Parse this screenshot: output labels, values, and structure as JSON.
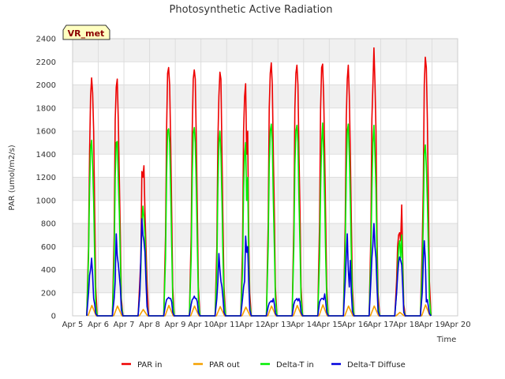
{
  "chart_data": {
    "type": "line",
    "title": "Photosynthetic Active Radiation",
    "xlabel": "Time",
    "ylabel": "PAR (umol/m2/s)",
    "badge": "VR_met",
    "xlim": [
      5,
      20
    ],
    "ylim": [
      0,
      2400
    ],
    "x_ticks": [
      {
        "value": 5,
        "label": "Apr 5"
      },
      {
        "value": 6,
        "label": "Apr 6"
      },
      {
        "value": 7,
        "label": "Apr 7"
      },
      {
        "value": 8,
        "label": "Apr 8"
      },
      {
        "value": 9,
        "label": "Apr 9"
      },
      {
        "value": 10,
        "label": "Apr 10"
      },
      {
        "value": 11,
        "label": "Apr 11"
      },
      {
        "value": 12,
        "label": "Apr 12"
      },
      {
        "value": 13,
        "label": "Apr 13"
      },
      {
        "value": 14,
        "label": "Apr 14"
      },
      {
        "value": 15,
        "label": "Apr 15"
      },
      {
        "value": 16,
        "label": "Apr 16"
      },
      {
        "value": 17,
        "label": "Apr 17"
      },
      {
        "value": 18,
        "label": "Apr 18"
      },
      {
        "value": 19,
        "label": "Apr 19"
      },
      {
        "value": 20,
        "label": "Apr 20"
      }
    ],
    "y_ticks": [
      {
        "value": 0,
        "label": "0"
      },
      {
        "value": 200,
        "label": "200"
      },
      {
        "value": 400,
        "label": "400"
      },
      {
        "value": 600,
        "label": "600"
      },
      {
        "value": 800,
        "label": "800"
      },
      {
        "value": 1000,
        "label": "1000"
      },
      {
        "value": 1200,
        "label": "1200"
      },
      {
        "value": 1400,
        "label": "1400"
      },
      {
        "value": 1600,
        "label": "1600"
      },
      {
        "value": 1800,
        "label": "1800"
      },
      {
        "value": 2000,
        "label": "2000"
      },
      {
        "value": 2200,
        "label": "2200"
      },
      {
        "value": 2400,
        "label": "2400"
      }
    ],
    "grid": true,
    "legend_position": "bottom",
    "series": [
      {
        "name": "PAR in",
        "color": "#ee0000",
        "x": [
          5.55,
          5.62,
          5.66,
          5.7,
          5.74,
          5.78,
          5.82,
          5.86,
          5.9,
          5.96,
          6.55,
          6.62,
          6.66,
          6.7,
          6.74,
          6.78,
          6.82,
          6.86,
          6.9,
          6.96,
          7.55,
          7.62,
          7.66,
          7.7,
          7.74,
          7.78,
          7.82,
          7.86,
          7.9,
          7.96,
          8.55,
          8.62,
          8.66,
          8.7,
          8.74,
          8.78,
          8.82,
          8.86,
          8.9,
          8.96,
          9.55,
          9.62,
          9.66,
          9.7,
          9.74,
          9.78,
          9.82,
          9.86,
          9.9,
          9.96,
          10.55,
          10.62,
          10.66,
          10.7,
          10.74,
          10.78,
          10.82,
          10.86,
          10.9,
          10.96,
          11.55,
          11.62,
          11.66,
          11.7,
          11.74,
          11.78,
          11.82,
          11.86,
          11.9,
          11.96,
          12.55,
          12.62,
          12.66,
          12.7,
          12.74,
          12.78,
          12.82,
          12.86,
          12.9,
          12.96,
          13.55,
          13.62,
          13.66,
          13.7,
          13.74,
          13.78,
          13.82,
          13.86,
          13.9,
          13.96,
          14.55,
          14.62,
          14.66,
          14.7,
          14.74,
          14.78,
          14.82,
          14.86,
          14.9,
          14.96,
          15.55,
          15.62,
          15.66,
          15.7,
          15.74,
          15.78,
          15.82,
          15.86,
          15.9,
          15.96,
          16.55,
          16.62,
          16.66,
          16.7,
          16.74,
          16.78,
          16.82,
          16.86,
          16.9,
          16.96,
          17.55,
          17.62,
          17.66,
          17.7,
          17.74,
          17.78,
          17.82,
          17.86,
          17.9,
          17.96,
          18.55,
          18.62,
          18.66,
          18.7,
          18.74,
          18.78,
          18.82,
          18.86,
          18.9,
          18.96
        ],
        "y": [
          0,
          600,
          1400,
          1900,
          2060,
          1930,
          1600,
          900,
          250,
          0,
          0,
          700,
          1700,
          1980,
          2050,
          1700,
          1200,
          700,
          150,
          0,
          0,
          300,
          500,
          1250,
          1200,
          1300,
          900,
          600,
          300,
          0,
          0,
          700,
          1600,
          2100,
          2150,
          2000,
          1500,
          900,
          250,
          0,
          0,
          700,
          1600,
          2050,
          2130,
          2050,
          1500,
          900,
          250,
          0,
          0,
          600,
          1500,
          1900,
          2110,
          2050,
          1400,
          800,
          250,
          0,
          0,
          600,
          1600,
          1900,
          2010,
          1400,
          1600,
          700,
          200,
          0,
          0,
          800,
          1800,
          2100,
          2190,
          2000,
          1400,
          900,
          250,
          0,
          0,
          800,
          1800,
          2100,
          2170,
          2000,
          1400,
          900,
          250,
          0,
          0,
          800,
          1800,
          2150,
          2180,
          1900,
          1400,
          800,
          250,
          0,
          0,
          800,
          1700,
          2050,
          2170,
          1900,
          1400,
          800,
          250,
          0,
          0,
          700,
          1700,
          2000,
          2320,
          2020,
          1600,
          700,
          200,
          0,
          0,
          300,
          600,
          700,
          720,
          650,
          960,
          500,
          100,
          0,
          0,
          600,
          1100,
          2000,
          2240,
          2150,
          1700,
          1000,
          300,
          0
        ]
      },
      {
        "name": "PAR out",
        "color": "#f5a000",
        "x": [
          5.6,
          5.75,
          5.92,
          6.6,
          6.75,
          6.92,
          7.6,
          7.75,
          7.92,
          8.6,
          8.75,
          8.92,
          9.6,
          9.75,
          9.92,
          10.6,
          10.75,
          10.92,
          11.6,
          11.75,
          11.92,
          12.6,
          12.75,
          12.92,
          13.6,
          13.75,
          13.92,
          14.6,
          14.75,
          14.92,
          15.6,
          15.75,
          15.92,
          16.6,
          16.75,
          16.92,
          17.6,
          17.75,
          17.92,
          18.6,
          18.75,
          18.92
        ],
        "y": [
          0,
          90,
          0,
          0,
          85,
          0,
          0,
          55,
          0,
          0,
          90,
          0,
          0,
          85,
          0,
          0,
          80,
          0,
          0,
          75,
          0,
          0,
          85,
          0,
          0,
          90,
          0,
          0,
          95,
          0,
          0,
          85,
          0,
          0,
          85,
          0,
          0,
          30,
          0,
          0,
          95,
          0
        ]
      },
      {
        "name": "Delta-T in",
        "color": "#00ee00",
        "x": [
          5.55,
          5.62,
          5.66,
          5.7,
          5.74,
          5.78,
          5.82,
          5.86,
          5.9,
          5.96,
          6.55,
          6.62,
          6.66,
          6.7,
          6.74,
          6.78,
          6.82,
          6.86,
          6.9,
          6.96,
          7.55,
          7.62,
          7.66,
          7.7,
          7.74,
          7.78,
          7.82,
          7.86,
          7.9,
          7.96,
          8.55,
          8.62,
          8.66,
          8.7,
          8.74,
          8.78,
          8.82,
          8.86,
          8.9,
          8.96,
          9.55,
          9.62,
          9.66,
          9.7,
          9.74,
          9.78,
          9.82,
          9.86,
          9.9,
          9.96,
          10.55,
          10.62,
          10.66,
          10.7,
          10.74,
          10.78,
          10.82,
          10.86,
          10.9,
          10.96,
          11.55,
          11.62,
          11.66,
          11.7,
          11.74,
          11.78,
          11.82,
          11.86,
          11.9,
          11.96,
          12.55,
          12.62,
          12.66,
          12.7,
          12.74,
          12.78,
          12.82,
          12.86,
          12.9,
          12.96,
          13.55,
          13.62,
          13.66,
          13.7,
          13.74,
          13.78,
          13.82,
          13.86,
          13.9,
          13.96,
          14.55,
          14.62,
          14.66,
          14.7,
          14.74,
          14.78,
          14.82,
          14.86,
          14.9,
          14.96,
          15.55,
          15.62,
          15.66,
          15.7,
          15.74,
          15.78,
          15.82,
          15.86,
          15.9,
          15.96,
          16.55,
          16.62,
          16.66,
          16.7,
          16.74,
          16.78,
          16.82,
          16.86,
          16.9,
          16.96,
          17.55,
          17.62,
          17.66,
          17.7,
          17.74,
          17.78,
          17.82,
          17.86,
          17.9,
          17.96,
          18.55,
          18.62,
          18.66,
          18.7,
          18.74,
          18.78,
          18.82,
          18.86,
          18.9,
          18.96
        ],
        "y": [
          0,
          500,
          1100,
          1450,
          1520,
          1300,
          1000,
          500,
          100,
          0,
          0,
          500,
          1200,
          1500,
          1510,
          1200,
          900,
          500,
          100,
          0,
          0,
          200,
          400,
          800,
          950,
          850,
          700,
          400,
          100,
          0,
          0,
          500,
          1200,
          1600,
          1620,
          1500,
          1100,
          600,
          150,
          0,
          0,
          500,
          1200,
          1580,
          1630,
          1500,
          1100,
          600,
          150,
          0,
          0,
          400,
          1100,
          1500,
          1600,
          1400,
          1000,
          500,
          150,
          0,
          0,
          400,
          1100,
          1400,
          1500,
          1000,
          1200,
          500,
          100,
          0,
          0,
          600,
          1300,
          1600,
          1660,
          1500,
          1000,
          600,
          150,
          0,
          0,
          600,
          1300,
          1600,
          1650,
          1500,
          1000,
          600,
          150,
          0,
          0,
          500,
          1100,
          1500,
          1670,
          1400,
          1000,
          500,
          150,
          0,
          0,
          600,
          1200,
          1600,
          1660,
          1400,
          1000,
          500,
          150,
          0,
          0,
          500,
          1100,
          1500,
          1650,
          1400,
          1100,
          500,
          100,
          0,
          0,
          200,
          400,
          600,
          650,
          500,
          700,
          400,
          50,
          0,
          0,
          400,
          800,
          1400,
          1480,
          1300,
          1000,
          600,
          150,
          0
        ]
      },
      {
        "name": "Delta-T Diffuse",
        "color": "#0000dd",
        "x": [
          5.55,
          5.62,
          5.66,
          5.7,
          5.74,
          5.78,
          5.82,
          5.86,
          5.9,
          5.96,
          6.55,
          6.62,
          6.66,
          6.7,
          6.74,
          6.78,
          6.82,
          6.86,
          6.9,
          6.96,
          7.55,
          7.62,
          7.66,
          7.7,
          7.74,
          7.78,
          7.82,
          7.86,
          7.9,
          7.96,
          8.55,
          8.62,
          8.66,
          8.7,
          8.74,
          8.78,
          8.82,
          8.86,
          8.9,
          8.96,
          9.55,
          9.62,
          9.66,
          9.7,
          9.74,
          9.78,
          9.82,
          9.86,
          9.9,
          9.96,
          10.55,
          10.62,
          10.66,
          10.7,
          10.74,
          10.78,
          10.82,
          10.86,
          10.9,
          10.96,
          11.55,
          11.62,
          11.66,
          11.7,
          11.74,
          11.78,
          11.82,
          11.86,
          11.9,
          11.96,
          12.55,
          12.62,
          12.66,
          12.7,
          12.74,
          12.78,
          12.82,
          12.86,
          12.9,
          12.96,
          13.55,
          13.62,
          13.66,
          13.7,
          13.74,
          13.78,
          13.82,
          13.86,
          13.9,
          13.96,
          14.55,
          14.62,
          14.66,
          14.7,
          14.74,
          14.78,
          14.82,
          14.86,
          14.9,
          14.96,
          15.55,
          15.62,
          15.66,
          15.7,
          15.74,
          15.78,
          15.82,
          15.86,
          15.9,
          15.96,
          16.55,
          16.62,
          16.66,
          16.7,
          16.74,
          16.78,
          16.82,
          16.86,
          16.9,
          16.96,
          17.55,
          17.62,
          17.66,
          17.7,
          17.74,
          17.78,
          17.82,
          17.86,
          17.9,
          17.96,
          18.55,
          18.62,
          18.66,
          18.7,
          18.74,
          18.78,
          18.82,
          18.86,
          18.9,
          18.96
        ],
        "y": [
          0,
          200,
          350,
          400,
          500,
          350,
          150,
          100,
          20,
          0,
          0,
          150,
          300,
          710,
          520,
          450,
          350,
          250,
          50,
          0,
          0,
          200,
          500,
          840,
          700,
          650,
          550,
          300,
          80,
          0,
          0,
          100,
          140,
          150,
          160,
          150,
          150,
          120,
          30,
          0,
          0,
          100,
          140,
          150,
          170,
          150,
          150,
          120,
          30,
          0,
          0,
          150,
          300,
          540,
          400,
          300,
          250,
          150,
          30,
          0,
          0,
          150,
          250,
          300,
          690,
          550,
          600,
          300,
          50,
          0,
          0,
          80,
          110,
          120,
          130,
          120,
          150,
          100,
          20,
          0,
          0,
          100,
          130,
          140,
          150,
          130,
          150,
          120,
          30,
          0,
          0,
          120,
          140,
          150,
          150,
          140,
          190,
          120,
          30,
          0,
          0,
          300,
          500,
          710,
          400,
          250,
          480,
          200,
          40,
          0,
          0,
          300,
          500,
          620,
          800,
          600,
          500,
          250,
          40,
          0,
          0,
          200,
          350,
          460,
          510,
          480,
          440,
          250,
          30,
          0,
          0,
          200,
          450,
          650,
          500,
          120,
          140,
          80,
          20,
          0
        ]
      }
    ]
  }
}
